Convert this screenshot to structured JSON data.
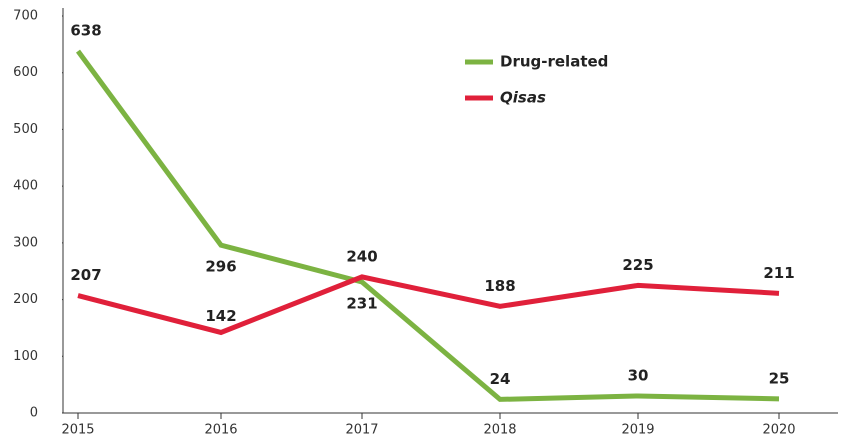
{
  "chart_data": {
    "type": "line",
    "categories": [
      "2015",
      "2016",
      "2017",
      "2018",
      "2019",
      "2020"
    ],
    "series": [
      {
        "name": "Drug-related",
        "color": "#7cb342",
        "values": [
          638,
          296,
          231,
          24,
          30,
          25
        ]
      },
      {
        "name": "Qisas",
        "color": "#e0203a",
        "values": [
          207,
          142,
          240,
          188,
          225,
          211
        ]
      }
    ],
    "ylim": [
      0,
      700
    ],
    "yticks": [
      0,
      100,
      200,
      300,
      400,
      500,
      600,
      700
    ],
    "grid": false,
    "legend": "upper right"
  }
}
